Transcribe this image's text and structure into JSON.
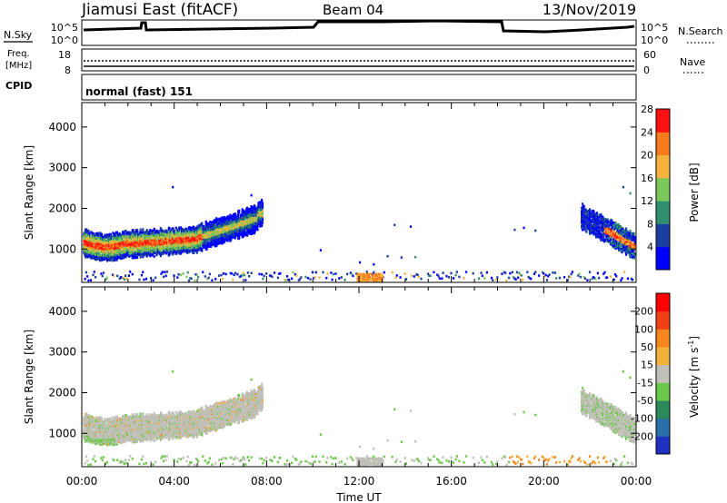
{
  "header": {
    "station": "Jiamusi East (fitACF)",
    "beam": "Beam 04",
    "date": "13/Nov/2019"
  },
  "noise_panel": {
    "left_label": "N.Sky",
    "right_label": "N.Search",
    "left_ticks": [
      "10^5",
      "10^0"
    ],
    "right_ticks": [
      "10^5",
      "10^0"
    ]
  },
  "freq_panel": {
    "left_label_1": "Freq.",
    "left_label_2": "[MHz]",
    "left_ticks": [
      "18",
      "8"
    ],
    "right_label": "Nave",
    "right_ticks": [
      "60",
      "0"
    ]
  },
  "cpid": {
    "label": "CPID",
    "value": "normal (fast) 151"
  },
  "chart_data": [
    {
      "type": "heatmap",
      "name": "power",
      "ylabel": "Slant Range [km]",
      "xlabel": "",
      "ylim": [
        180,
        4600
      ],
      "xlim": [
        0,
        24
      ],
      "yticks": [
        "1000",
        "2000",
        "3000",
        "4000"
      ],
      "colorbar": {
        "label": "Power [dB]",
        "ticks": [
          "4",
          "8",
          "12",
          "16",
          "20",
          "24",
          "28"
        ],
        "colors": [
          "#0000ff",
          "#1a3fa0",
          "#2f8f6e",
          "#7cc85a",
          "#f6b23a",
          "#f77a1c",
          "#ff1010"
        ]
      }
    },
    {
      "type": "heatmap",
      "name": "velocity",
      "ylabel": "Slant Range [km]",
      "xlabel": "Time UT",
      "ylim": [
        180,
        4600
      ],
      "xlim": [
        0,
        24
      ],
      "yticks": [
        "1000",
        "2000",
        "3000",
        "4000"
      ],
      "xticks": [
        "00:00",
        "04:00",
        "08:00",
        "12:00",
        "16:00",
        "20:00",
        "00:00"
      ],
      "colorbar": {
        "label": "Velocity [m s",
        "label_sup": "-1",
        "label_end": "]",
        "ticks": [
          "200",
          "100",
          "50",
          "15",
          "-15",
          "-50",
          "-100",
          "-200"
        ],
        "colors": [
          "#2030c0",
          "#2b6fa8",
          "#2a8a5a",
          "#6cc84a",
          "#c0c0b8",
          "#f4b23a",
          "#f7861c",
          "#f04016",
          "#ff0000"
        ]
      }
    }
  ]
}
